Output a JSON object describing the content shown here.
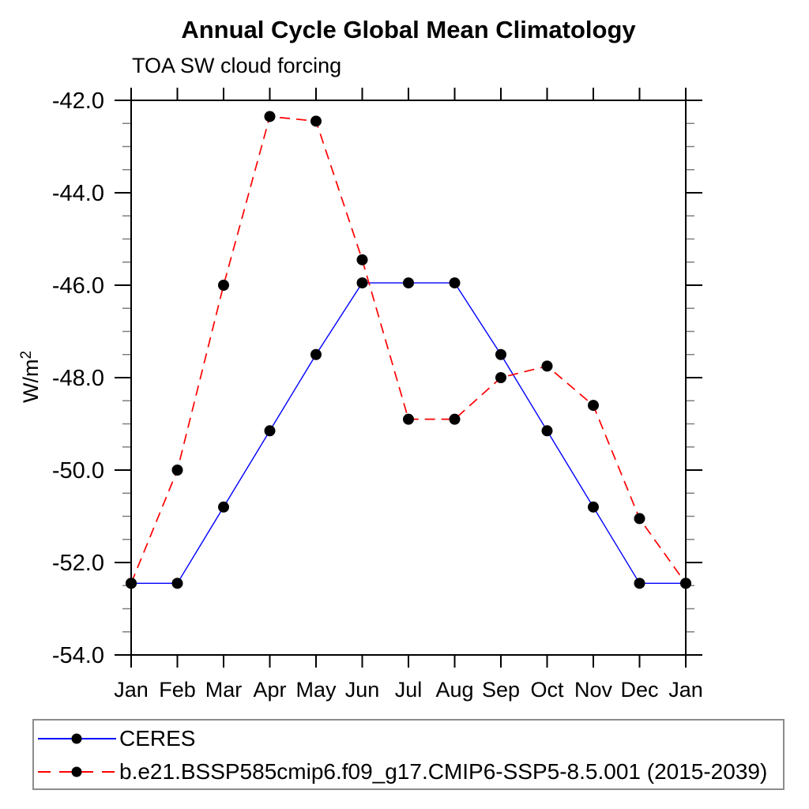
{
  "chart_data": {
    "type": "line",
    "title": "Annual Cycle Global Mean Climatology",
    "subtitle": "TOA SW cloud forcing",
    "ylabel_base": "W/m",
    "ylabel_exponent": "2",
    "categories": [
      "Jan",
      "Feb",
      "Mar",
      "Apr",
      "May",
      "Jun",
      "Jul",
      "Aug",
      "Sep",
      "Oct",
      "Nov",
      "Dec",
      "Jan"
    ],
    "ylim": [
      -54.0,
      -42.0
    ],
    "ytick_labels": [
      "-42.0",
      "-44.0",
      "-46.0",
      "-48.0",
      "-50.0",
      "-52.0",
      "-54.0"
    ],
    "ytick_major_step": 2.0,
    "ytick_minor_step": 0.5,
    "grid": false,
    "legend_position": "bottom",
    "marker_color": "#000000",
    "axis_color": "#000000",
    "minor_tick_color": "#7f7f7f",
    "series": [
      {
        "name": "CERES",
        "color": "#0000ff",
        "style": "solid",
        "values": [
          -52.45,
          -52.45,
          -50.8,
          -49.15,
          -47.5,
          -45.95,
          -45.95,
          -45.95,
          -47.5,
          -49.15,
          -50.8,
          -52.45,
          -52.45
        ]
      },
      {
        "name": "b.e21.BSSP585cmip6.f09_g17.CMIP6-SSP5-8.5.001 (2015-2039)",
        "color": "#ff0000",
        "style": "dashed",
        "values": [
          -52.45,
          -50.0,
          -46.0,
          -42.35,
          -42.45,
          -45.45,
          -48.9,
          -48.9,
          -48.0,
          -47.75,
          -48.6,
          -51.05,
          -52.45
        ]
      }
    ]
  }
}
